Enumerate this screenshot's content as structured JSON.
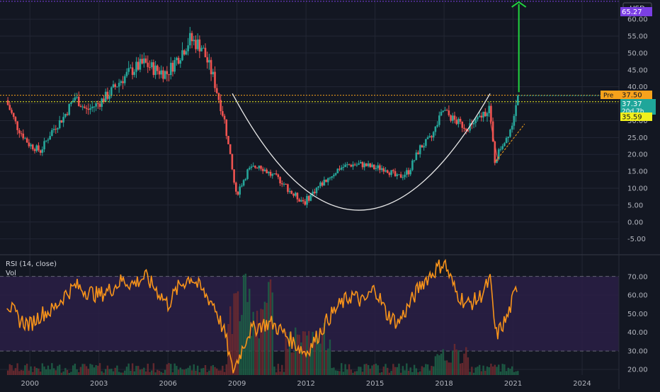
{
  "colors": {
    "background": "#131722",
    "grid": "#232734",
    "axis_text": "#b2b5be",
    "candle_up": "#26a69a",
    "candle_down": "#ef5350",
    "rsi_line": "#f7931a",
    "rsi_band": "#2a1f45",
    "rsi_level_line": "#9598a1",
    "cup_line": "#e8e8e8",
    "target_arrow": "#21d33f",
    "target_level": "#7b3fe4",
    "pre_level": "#f7a21b",
    "last_level": "#1fa69a",
    "sma_level": "#f0f01e",
    "vol_up": "#1e5e46",
    "vol_down": "#6b2a30"
  },
  "price_axis": {
    "currency": "USD",
    "ticks": [
      "60.00",
      "55.00",
      "50.00",
      "45.00",
      "40.00",
      "35.00",
      "30.00",
      "25.00",
      "20.00",
      "15.00",
      "10.00",
      "5.00",
      "0.00",
      "-5.00"
    ]
  },
  "price_labels": {
    "target": "65.27",
    "pre_tag": "Pre",
    "pre_value": "37.50",
    "last": "37.37",
    "countdown": "20d 7h",
    "moving_average": "35.59"
  },
  "rsi_axis": {
    "ticks": [
      "70.00",
      "60.00",
      "50.00",
      "40.00",
      "30.00",
      "20.00"
    ]
  },
  "rsi_panel": {
    "title": "RSI (14, close)",
    "volume_label": "Vol"
  },
  "time_axis": {
    "ticks": [
      "2000",
      "2003",
      "2006",
      "2009",
      "2012",
      "2015",
      "2018",
      "2021",
      "2024"
    ]
  },
  "chart_data": [
    {
      "type": "line",
      "name": "price",
      "x": [
        1999.0,
        1999.5,
        2000.0,
        2000.5,
        2001.0,
        2001.5,
        2002.0,
        2002.5,
        2003.0,
        2003.5,
        2004.0,
        2004.5,
        2005.0,
        2005.5,
        2006.0,
        2006.5,
        2007.0,
        2007.5,
        2008.0,
        2008.5,
        2009.0,
        2009.5,
        2010.0,
        2010.5,
        2011.0,
        2011.5,
        2012.0,
        2012.5,
        2013.0,
        2013.5,
        2014.0,
        2014.5,
        2015.0,
        2015.5,
        2016.0,
        2016.5,
        2017.0,
        2017.5,
        2018.0,
        2018.5,
        2019.0,
        2019.5,
        2020.0,
        2020.25,
        2020.5,
        2020.75,
        2021.0,
        2021.2
      ],
      "y": [
        36,
        28,
        23,
        21,
        27,
        31,
        37,
        33,
        35,
        38,
        42,
        45,
        47,
        45,
        44,
        49,
        54,
        52,
        43,
        30,
        8,
        15,
        17,
        14,
        12,
        8,
        6,
        10,
        13,
        16,
        17,
        17,
        16,
        16,
        13,
        15,
        22,
        25,
        33,
        30,
        28,
        30,
        34,
        18,
        22,
        25,
        29,
        37.4
      ],
      "ylim": [
        -8,
        64
      ],
      "xlim": [
        1998.7,
        2025.6
      ]
    },
    {
      "type": "line",
      "name": "RSI (14, close)",
      "x": [
        1999.0,
        1999.5,
        2000.0,
        2000.5,
        2001.0,
        2001.5,
        2002.0,
        2002.5,
        2003.0,
        2003.5,
        2004.0,
        2004.5,
        2005.0,
        2005.5,
        2006.0,
        2006.5,
        2007.0,
        2007.5,
        2008.0,
        2008.5,
        2008.8,
        2009.0,
        2009.5,
        2010.0,
        2010.5,
        2011.0,
        2011.5,
        2012.0,
        2012.5,
        2013.0,
        2013.5,
        2014.0,
        2014.5,
        2015.0,
        2015.5,
        2016.0,
        2016.5,
        2017.0,
        2017.5,
        2018.0,
        2018.5,
        2019.0,
        2019.5,
        2020.0,
        2020.25,
        2020.5,
        2020.75,
        2021.0,
        2021.2
      ],
      "y": [
        56,
        47,
        44,
        50,
        52,
        60,
        65,
        62,
        60,
        63,
        68,
        66,
        70,
        63,
        55,
        65,
        70,
        62,
        55,
        38,
        19,
        24,
        40,
        44,
        45,
        40,
        34,
        29,
        38,
        48,
        55,
        60,
        56,
        64,
        50,
        45,
        55,
        66,
        72,
        78,
        62,
        55,
        58,
        68,
        38,
        43,
        48,
        58,
        65
      ],
      "ylim": [
        17,
        81
      ],
      "levels": [
        70,
        30
      ]
    }
  ]
}
